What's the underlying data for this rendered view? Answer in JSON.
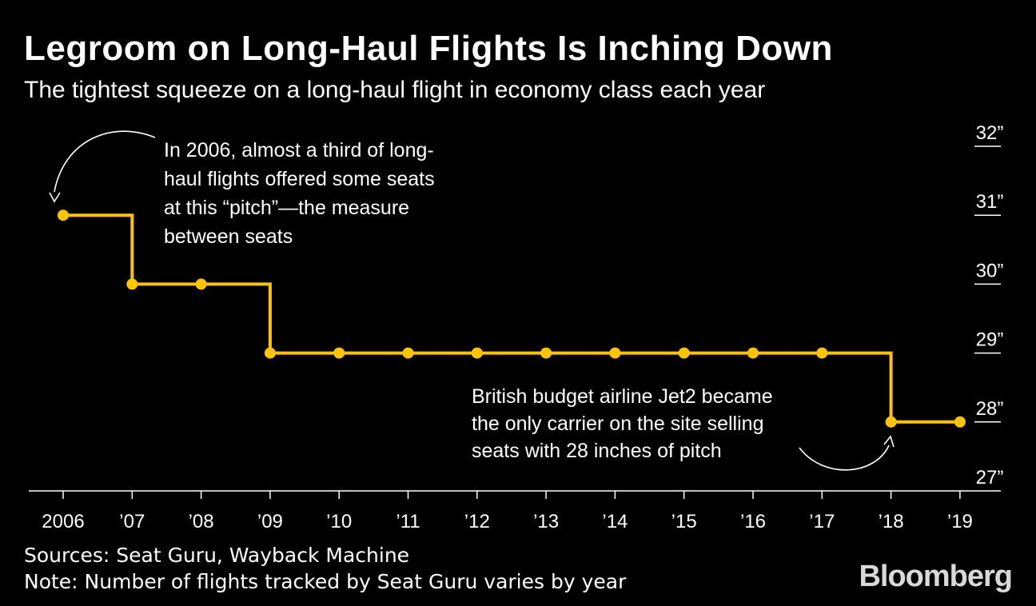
{
  "header": {
    "title": "Legroom on Long-Haul Flights Is Inching Down",
    "subtitle": "The tightest squeeze on a long-haul flight in economy class each year"
  },
  "chart_data": {
    "type": "line",
    "step": true,
    "categories": [
      "2006",
      "’07",
      "’08",
      "’09",
      "’10",
      "’11",
      "’12",
      "’13",
      "’14",
      "’15",
      "’16",
      "’17",
      "’18",
      "’19"
    ],
    "values": [
      31,
      30,
      30,
      29,
      29,
      29,
      29,
      29,
      29,
      29,
      29,
      29,
      28,
      28
    ],
    "y_ticks": [
      27,
      28,
      29,
      30,
      31,
      32
    ],
    "y_tick_labels": [
      "27”",
      "28”",
      "29”",
      "30”",
      "31”",
      "32”"
    ],
    "ylim": [
      27,
      32
    ],
    "line_color": "#ffc400",
    "annotations": [
      {
        "lines": [
          "In 2006, almost a third of long-",
          "haul flights offered some seats",
          "at this “pitch”—the measure",
          "between seats"
        ],
        "points_to": "2006"
      },
      {
        "lines": [
          "British budget airline Jet2 became",
          "the only carrier on the site selling",
          "seats with 28 inches of pitch"
        ],
        "points_to": "’18"
      }
    ]
  },
  "footer": {
    "sources": "Sources: Seat Guru, Wayback Machine",
    "note": "Note: Number of flights tracked by Seat Guru varies by year",
    "logo": "Bloomberg"
  }
}
